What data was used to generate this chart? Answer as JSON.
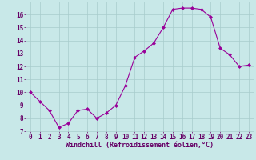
{
  "x": [
    0,
    1,
    2,
    3,
    4,
    5,
    6,
    7,
    8,
    9,
    10,
    11,
    12,
    13,
    14,
    15,
    16,
    17,
    18,
    19,
    20,
    21,
    22,
    23
  ],
  "y": [
    10.0,
    9.3,
    8.6,
    7.3,
    7.6,
    8.6,
    8.7,
    8.0,
    8.4,
    9.0,
    10.5,
    12.7,
    13.2,
    13.8,
    15.0,
    16.4,
    16.5,
    16.5,
    16.4,
    15.8,
    13.4,
    12.9,
    12.0,
    12.1
  ],
  "line_color": "#990099",
  "marker_color": "#990099",
  "bg_color": "#c8e8e8",
  "grid_color": "#a8cccc",
  "xlabel": "Windchill (Refroidissement éolien,°C)",
  "xlim": [
    -0.5,
    23.5
  ],
  "ylim": [
    7,
    17
  ],
  "yticks": [
    7,
    8,
    9,
    10,
    11,
    12,
    13,
    14,
    15,
    16
  ],
  "xticks": [
    0,
    1,
    2,
    3,
    4,
    5,
    6,
    7,
    8,
    9,
    10,
    11,
    12,
    13,
    14,
    15,
    16,
    17,
    18,
    19,
    20,
    21,
    22,
    23
  ],
  "label_color": "#660066",
  "label_fontsize": 6.0,
  "tick_fontsize": 5.5
}
